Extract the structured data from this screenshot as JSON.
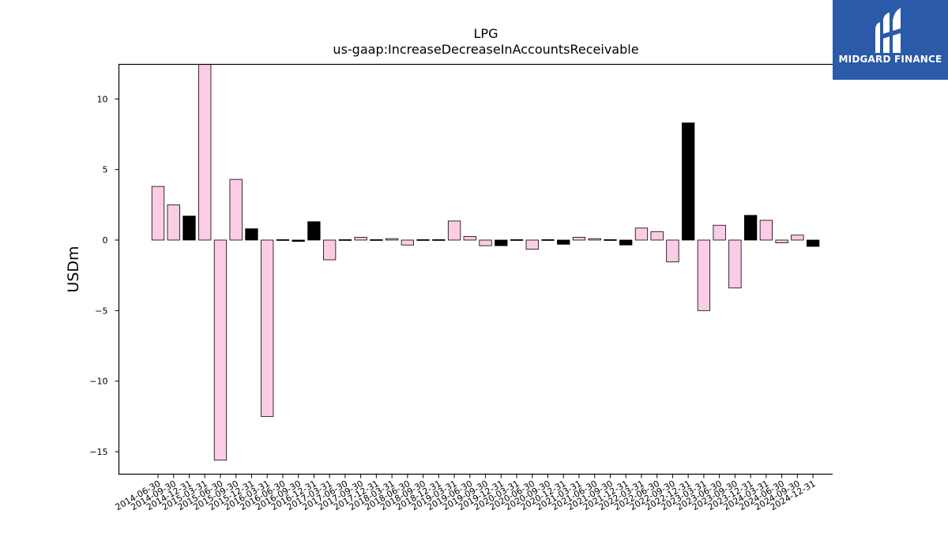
{
  "chart_data": {
    "type": "bar",
    "title": "LPG",
    "subtitle": "us-gaap:IncreaseDecreaseInAccountsReceivable",
    "xlabel": "",
    "ylabel": "USDm",
    "ylim": [
      -16.5,
      12.5
    ],
    "yticks": [
      10,
      5,
      0,
      -5,
      -10,
      -15
    ],
    "ytick_labels": [
      "10",
      "5",
      "0",
      "−5",
      "−10",
      "−15"
    ],
    "grid": false,
    "colors": {
      "pink": "#fbcce4",
      "black": "#000000",
      "edge": "#000000"
    },
    "categories": [
      "2014-06-30",
      "2014-09-30",
      "2014-12-31",
      "2015-03-31",
      "2015-06-30",
      "2015-09-30",
      "2015-12-31",
      "2016-03-31",
      "2016-06-30",
      "2016-09-30",
      "2016-12-31",
      "2017-03-31",
      "2017-06-30",
      "2017-09-30",
      "2017-12-31",
      "2018-03-31",
      "2018-06-30",
      "2018-09-30",
      "2018-12-31",
      "2019-03-31",
      "2019-06-30",
      "2019-09-30",
      "2019-12-31",
      "2020-03-31",
      "2020-06-30",
      "2020-09-30",
      "2020-12-31",
      "2021-03-31",
      "2021-06-30",
      "2021-09-30",
      "2021-12-31",
      "2022-03-31",
      "2022-06-30",
      "2022-09-30",
      "2022-12-31",
      "2023-03-31",
      "2023-06-30",
      "2023-09-30",
      "2023-12-31",
      "2024-03-31",
      "2024-06-30",
      "2024-09-30",
      "2024-12-31"
    ],
    "values": [
      3.8,
      2.5,
      1.7,
      13.9,
      -15.6,
      4.3,
      0.8,
      -12.5,
      0.0,
      -0.1,
      1.3,
      -1.4,
      0.0,
      0.2,
      0.05,
      0.1,
      -0.35,
      0.0,
      0.0,
      1.35,
      0.25,
      -0.4,
      -0.4,
      0.0,
      -0.65,
      0.05,
      -0.3,
      0.2,
      0.1,
      0.05,
      -0.35,
      0.85,
      0.6,
      -1.55,
      8.3,
      -5.0,
      1.05,
      -3.4,
      1.75,
      1.4,
      -0.2,
      0.35,
      -0.45
    ],
    "bar_colors": [
      "pink",
      "pink",
      "black",
      "pink",
      "pink",
      "pink",
      "black",
      "pink",
      "black",
      "black",
      "black",
      "pink",
      "black",
      "pink",
      "black",
      "pink",
      "pink",
      "black",
      "black",
      "pink",
      "pink",
      "pink",
      "black",
      "black",
      "pink",
      "black",
      "black",
      "pink",
      "pink",
      "black",
      "black",
      "pink",
      "pink",
      "pink",
      "black",
      "pink",
      "pink",
      "pink",
      "black",
      "pink",
      "pink",
      "pink",
      "black"
    ]
  },
  "logo": {
    "text": "MIDGARD FINANCE",
    "color": "#2a5aa8",
    "icon": "midgard-logo-icon"
  }
}
